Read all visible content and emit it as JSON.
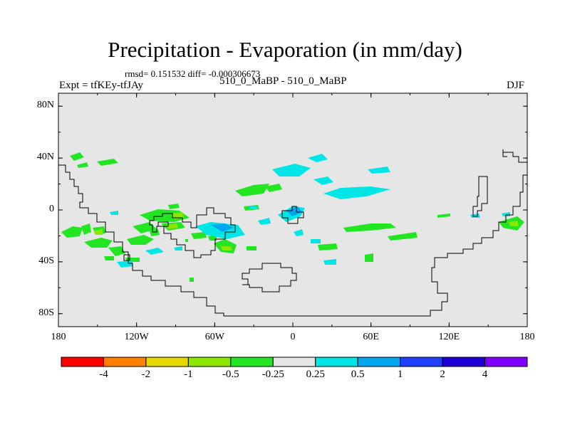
{
  "header": {
    "title": "Precipitation - Evaporation (in mm/day)",
    "stats": "rmsd= 0.151532 diff= -0.000306673",
    "experiment": "Expt = tfKEy-tfJAy",
    "runs": "510_0_MaBP - 510_0_MaBP",
    "season": "DJF"
  },
  "axes": {
    "y_ticks": [
      {
        "value": 80,
        "label": "80N"
      },
      {
        "value": 40,
        "label": "40N"
      },
      {
        "value": 0,
        "label": "0"
      },
      {
        "value": -40,
        "label": "40S"
      },
      {
        "value": -80,
        "label": "80S"
      }
    ],
    "x_ticks": [
      {
        "value": -180,
        "label": "180"
      },
      {
        "value": -120,
        "label": "120W"
      },
      {
        "value": -60,
        "label": "60W"
      },
      {
        "value": 0,
        "label": "0"
      },
      {
        "value": 60,
        "label": "60E"
      },
      {
        "value": 120,
        "label": "120E"
      },
      {
        "value": 180,
        "label": "180"
      }
    ]
  },
  "colorbar": {
    "colors": [
      "#ff0000",
      "#ff8000",
      "#e6d800",
      "#8ce600",
      "#22e622",
      "#e6e6e6",
      "#00e6e6",
      "#00a6f0",
      "#2040ff",
      "#2000d8",
      "#8000ff"
    ],
    "labels": [
      "-4",
      "-2",
      "-1",
      "-0.5",
      "-0.25",
      "0.25",
      "0.5",
      "1",
      "2",
      "4"
    ]
  },
  "map_colors": {
    "background": "#e6e6e6",
    "coast": "#000000"
  }
}
